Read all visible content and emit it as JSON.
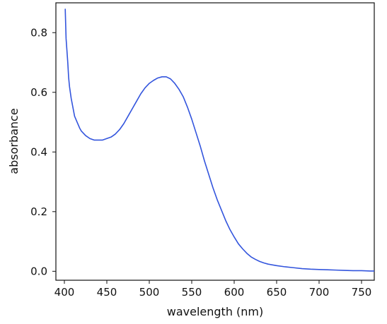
{
  "chart_data": {
    "type": "line",
    "title": "",
    "xlabel": "wavelength  (nm)",
    "ylabel": "absorbance",
    "xlim": [
      390,
      765
    ],
    "ylim": [
      -0.03,
      0.9
    ],
    "grid": false,
    "legend": "none",
    "xticks": [
      {
        "value": 400,
        "label": "400"
      },
      {
        "value": 450,
        "label": "450"
      },
      {
        "value": 500,
        "label": "500"
      },
      {
        "value": 550,
        "label": "550"
      },
      {
        "value": 600,
        "label": "600"
      },
      {
        "value": 650,
        "label": "650"
      },
      {
        "value": 700,
        "label": "700"
      },
      {
        "value": 750,
        "label": "750"
      }
    ],
    "yticks": [
      {
        "value": 0.0,
        "label": "0.0"
      },
      {
        "value": 0.2,
        "label": "0.2"
      },
      {
        "value": 0.4,
        "label": "0.4"
      },
      {
        "value": 0.6,
        "label": "0.6"
      },
      {
        "value": 0.8,
        "label": "0.8"
      }
    ],
    "series": [
      {
        "color": "#3355dd",
        "x": [
          401,
          402,
          403,
          404,
          405,
          406,
          408,
          410,
          412,
          415,
          418,
          420,
          425,
          430,
          435,
          440,
          445,
          450,
          455,
          460,
          465,
          470,
          475,
          480,
          485,
          490,
          495,
          500,
          505,
          510,
          515,
          520,
          525,
          530,
          535,
          540,
          545,
          550,
          555,
          560,
          565,
          570,
          575,
          580,
          585,
          590,
          595,
          600,
          605,
          610,
          615,
          620,
          625,
          630,
          635,
          640,
          650,
          660,
          670,
          680,
          690,
          700,
          710,
          720,
          730,
          740,
          750,
          760,
          765
        ],
        "y": [
          0.88,
          0.78,
          0.74,
          0.7,
          0.65,
          0.62,
          0.58,
          0.55,
          0.52,
          0.5,
          0.48,
          0.47,
          0.455,
          0.445,
          0.44,
          0.44,
          0.44,
          0.445,
          0.45,
          0.46,
          0.475,
          0.495,
          0.52,
          0.545,
          0.57,
          0.595,
          0.615,
          0.63,
          0.64,
          0.648,
          0.652,
          0.652,
          0.645,
          0.63,
          0.61,
          0.585,
          0.55,
          0.51,
          0.465,
          0.42,
          0.37,
          0.325,
          0.28,
          0.24,
          0.205,
          0.17,
          0.14,
          0.115,
          0.092,
          0.075,
          0.06,
          0.048,
          0.04,
          0.033,
          0.028,
          0.024,
          0.019,
          0.015,
          0.012,
          0.009,
          0.007,
          0.006,
          0.005,
          0.004,
          0.003,
          0.002,
          0.002,
          0.001,
          0.001
        ]
      }
    ]
  }
}
